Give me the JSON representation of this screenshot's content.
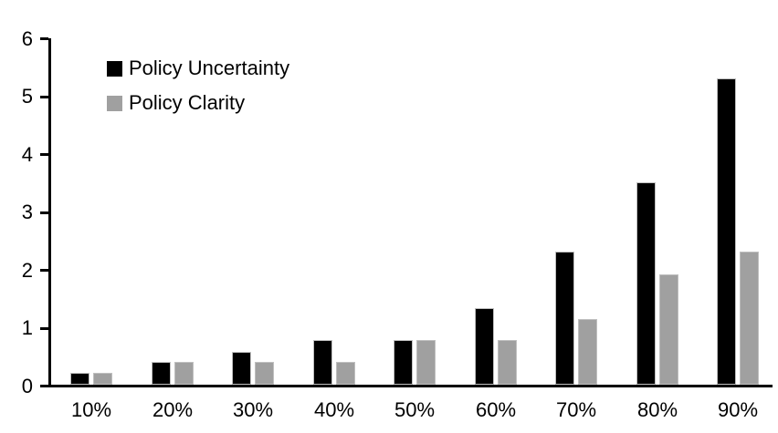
{
  "chart_data": {
    "type": "bar",
    "title": "",
    "xlabel": "",
    "ylabel": "",
    "categories": [
      "10%",
      "20%",
      "30%",
      "40%",
      "50%",
      "60%",
      "70%",
      "80%",
      "90%"
    ],
    "series": [
      {
        "name": "Policy Uncertainty",
        "color": "#000000",
        "values": [
          0.2,
          0.4,
          0.57,
          0.77,
          0.78,
          1.33,
          2.3,
          3.5,
          5.3
        ]
      },
      {
        "name": "Policy Clarity",
        "color": "#a0a0a0",
        "values": [
          0.2,
          0.39,
          0.39,
          0.39,
          0.78,
          0.77,
          1.14,
          1.9,
          2.3
        ]
      }
    ],
    "ylim": [
      0,
      6
    ],
    "yticks": [
      0,
      1,
      2,
      3,
      4,
      5,
      6
    ],
    "grid": false,
    "legend_position": "top-left-inside",
    "background": "#ffffff",
    "axis_color": "#000000",
    "bar_outline_color": "#bfbfbf"
  }
}
